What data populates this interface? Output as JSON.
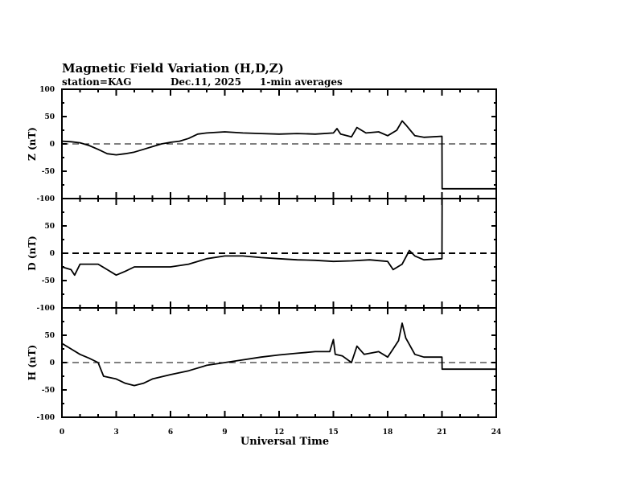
{
  "chart_data": {
    "type": "line",
    "title": "Magnetic Field Variation (H,D,Z)",
    "subtitle": {
      "station": "station=KAG",
      "date": "Dec.11, 2025",
      "averaging": "1-min averages"
    },
    "xlabel": "Universal Time",
    "xlim": [
      0,
      24
    ],
    "xticks": [
      "0",
      "3",
      "6",
      "9",
      "12",
      "15",
      "18",
      "21",
      "24"
    ],
    "yticks": [
      "100",
      "50",
      "0",
      "-50",
      "-100"
    ],
    "panels": [
      {
        "name": "Z",
        "ylabel": "Z (nT)",
        "ylim": [
          -100,
          100
        ],
        "zero_line": "dashed",
        "x": [
          0,
          0.5,
          1,
          1.5,
          2,
          2.5,
          3,
          3.5,
          4,
          4.5,
          5,
          5.5,
          6,
          6.5,
          7,
          7.5,
          8,
          9,
          10,
          11,
          12,
          13,
          14,
          15,
          15.2,
          15.4,
          16,
          16.3,
          16.8,
          17.5,
          18,
          18.5,
          18.8,
          19,
          19.5,
          20,
          21,
          21.01,
          24
        ],
        "y": [
          5,
          4,
          2,
          -3,
          -10,
          -18,
          -20,
          -18,
          -15,
          -10,
          -5,
          0,
          3,
          5,
          10,
          18,
          20,
          22,
          20,
          19,
          18,
          19,
          18,
          20,
          28,
          18,
          13,
          30,
          20,
          22,
          15,
          25,
          42,
          35,
          15,
          12,
          14,
          -82,
          -82
        ]
      },
      {
        "name": "D",
        "ylabel": "D (nT)",
        "ylim": [
          -100,
          100
        ],
        "zero_line": "dashed-bold",
        "x": [
          0,
          0.5,
          0.7,
          1,
          2,
          2.5,
          3,
          3.5,
          4,
          5,
          6,
          7,
          8,
          9,
          10,
          11,
          12,
          13,
          14,
          15,
          16,
          17,
          18,
          18.3,
          18.8,
          19.2,
          19.5,
          20,
          21,
          21.01,
          24
        ],
        "y": [
          -25,
          -30,
          -40,
          -20,
          -20,
          -30,
          -40,
          -33,
          -25,
          -25,
          -25,
          -20,
          -10,
          -5,
          -5,
          -8,
          -10,
          -12,
          -13,
          -15,
          -14,
          -12,
          -15,
          -30,
          -20,
          5,
          -5,
          -12,
          -10,
          100,
          100
        ]
      },
      {
        "name": "H",
        "ylabel": "H (nT)",
        "ylim": [
          -100,
          100
        ],
        "zero_line": "dashed",
        "x": [
          0,
          0.5,
          1,
          1.5,
          2,
          2.3,
          3,
          3.5,
          4,
          4.5,
          5,
          6,
          7,
          8,
          9,
          10,
          11,
          12,
          13,
          14,
          14.8,
          15,
          15.1,
          15.5,
          16,
          16.3,
          16.7,
          17.5,
          18,
          18.3,
          18.6,
          18.8,
          19,
          19.5,
          20,
          21,
          21.01,
          24
        ],
        "y": [
          35,
          25,
          15,
          8,
          0,
          -25,
          -30,
          -38,
          -42,
          -38,
          -30,
          -22,
          -15,
          -5,
          0,
          5,
          10,
          14,
          17,
          20,
          20,
          42,
          15,
          12,
          0,
          30,
          15,
          20,
          10,
          25,
          40,
          72,
          45,
          15,
          10,
          10,
          -12,
          -12
        ]
      }
    ]
  }
}
